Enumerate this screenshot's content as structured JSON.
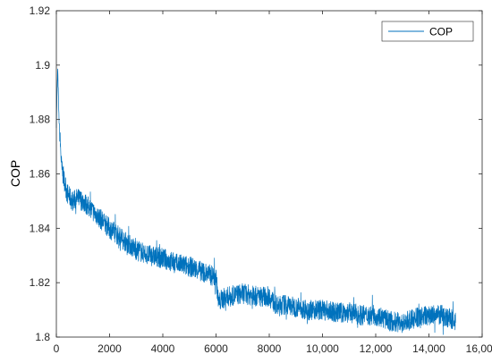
{
  "chart_data": {
    "type": "line",
    "title": "",
    "xlabel": "",
    "ylabel": "COP",
    "xlim": [
      0,
      16000
    ],
    "ylim": [
      1.8,
      1.92
    ],
    "x_ticks": [
      0,
      2000,
      4000,
      6000,
      8000,
      10000,
      12000,
      14000,
      16000
    ],
    "x_tick_labels": [
      "0",
      "2000",
      "4000",
      "6000",
      "8000",
      "10,000",
      "12,000",
      "14,000",
      "16,000"
    ],
    "y_ticks": [
      1.8,
      1.82,
      1.84,
      1.86,
      1.88,
      1.9,
      1.92
    ],
    "y_tick_labels": [
      "1.8",
      "1.82",
      "1.84",
      "1.86",
      "1.88",
      "1.9",
      "1.92"
    ],
    "grid": false,
    "legend": {
      "position": "top-right",
      "entries": [
        "COP"
      ]
    },
    "series": [
      {
        "name": "COP",
        "color": "#0072BD",
        "x": [
          0,
          50,
          100,
          200,
          400,
          600,
          800,
          1000,
          1500,
          2000,
          2500,
          3000,
          3500,
          4000,
          4500,
          5000,
          5500,
          6000,
          6100,
          6200,
          6500,
          7000,
          7500,
          8000,
          8300,
          8500,
          9000,
          9500,
          10000,
          10500,
          11000,
          11500,
          12000,
          12500,
          13000,
          13500,
          14000,
          14500,
          15000
        ],
        "y": [
          1.878,
          1.899,
          1.88,
          1.862,
          1.853,
          1.85,
          1.851,
          1.85,
          1.845,
          1.84,
          1.836,
          1.832,
          1.83,
          1.829,
          1.827,
          1.826,
          1.824,
          1.822,
          1.812,
          1.814,
          1.815,
          1.816,
          1.815,
          1.815,
          1.811,
          1.812,
          1.811,
          1.81,
          1.81,
          1.809,
          1.809,
          1.808,
          1.808,
          1.806,
          1.805,
          1.807,
          1.808,
          1.808,
          1.806
        ]
      }
    ]
  }
}
